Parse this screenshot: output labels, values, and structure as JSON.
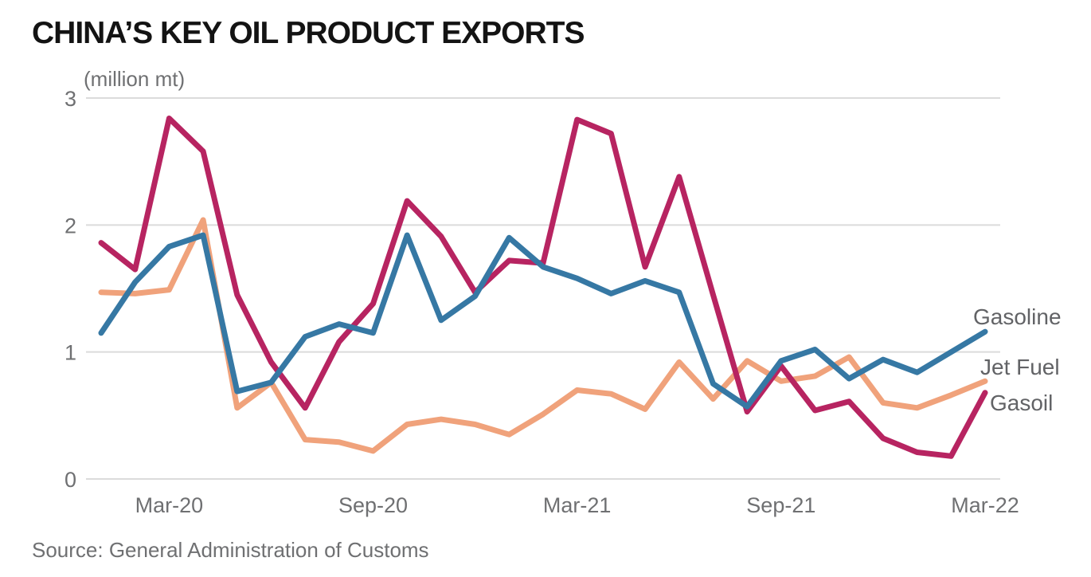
{
  "source_note": "Source: General Administration of Customs",
  "colors": {
    "gasoline": "#3678A4",
    "jet_fuel": "#F0A27B",
    "gasoil": "#B72461",
    "grid": "#DBDBDB",
    "axis_text": "#6F7072",
    "series_label_text": "#626366",
    "title_text": "#131313",
    "background": "#FFFFFF"
  },
  "chart_data": {
    "type": "line",
    "title": "CHINA’S KEY OIL PRODUCT EXPORTS",
    "unit_label": "(million mt)",
    "xlabel": "",
    "ylabel": "",
    "ylim": [
      0,
      3
    ],
    "yticks": [
      0,
      1,
      2,
      3
    ],
    "xticks": [
      "Mar-20",
      "Sep-20",
      "Mar-21",
      "Sep-21",
      "Mar-22"
    ],
    "grid": "horizontal",
    "legend_position": "end-of-line-labels",
    "x": [
      "Jan-20",
      "Feb-20",
      "Mar-20",
      "Apr-20",
      "May-20",
      "Jun-20",
      "Jul-20",
      "Aug-20",
      "Sep-20",
      "Oct-20",
      "Nov-20",
      "Dec-20",
      "Jan-21",
      "Feb-21",
      "Mar-21",
      "Apr-21",
      "May-21",
      "Jun-21",
      "Jul-21",
      "Aug-21",
      "Sep-21",
      "Oct-21",
      "Nov-21",
      "Dec-21",
      "Jan-22",
      "Feb-22",
      "Mar-22"
    ],
    "series": [
      {
        "name": "Gasoline",
        "color": "#3678A4",
        "values": [
          1.15,
          1.55,
          1.83,
          1.92,
          0.69,
          0.76,
          1.12,
          1.22,
          1.15,
          1.92,
          1.25,
          1.44,
          1.9,
          1.67,
          1.58,
          1.46,
          1.56,
          1.47,
          0.75,
          0.57,
          0.93,
          1.02,
          0.79,
          0.94,
          0.84,
          1.0,
          1.16
        ]
      },
      {
        "name": "Jet Fuel",
        "color": "#F0A27B",
        "values": [
          1.47,
          1.46,
          1.49,
          2.04,
          0.56,
          0.76,
          0.31,
          0.29,
          0.22,
          0.43,
          0.47,
          0.43,
          0.35,
          0.51,
          0.7,
          0.67,
          0.55,
          0.92,
          0.63,
          0.93,
          0.77,
          0.81,
          0.96,
          0.6,
          0.56,
          0.66,
          0.77
        ]
      },
      {
        "name": "Gasoil",
        "color": "#B72461",
        "values": [
          1.86,
          1.65,
          2.84,
          2.58,
          1.45,
          0.92,
          0.56,
          1.08,
          1.38,
          2.19,
          1.91,
          1.47,
          1.72,
          1.7,
          2.83,
          2.72,
          1.67,
          2.38,
          1.45,
          0.53,
          0.89,
          0.54,
          0.61,
          0.32,
          0.21,
          0.18,
          0.68
        ]
      }
    ]
  }
}
